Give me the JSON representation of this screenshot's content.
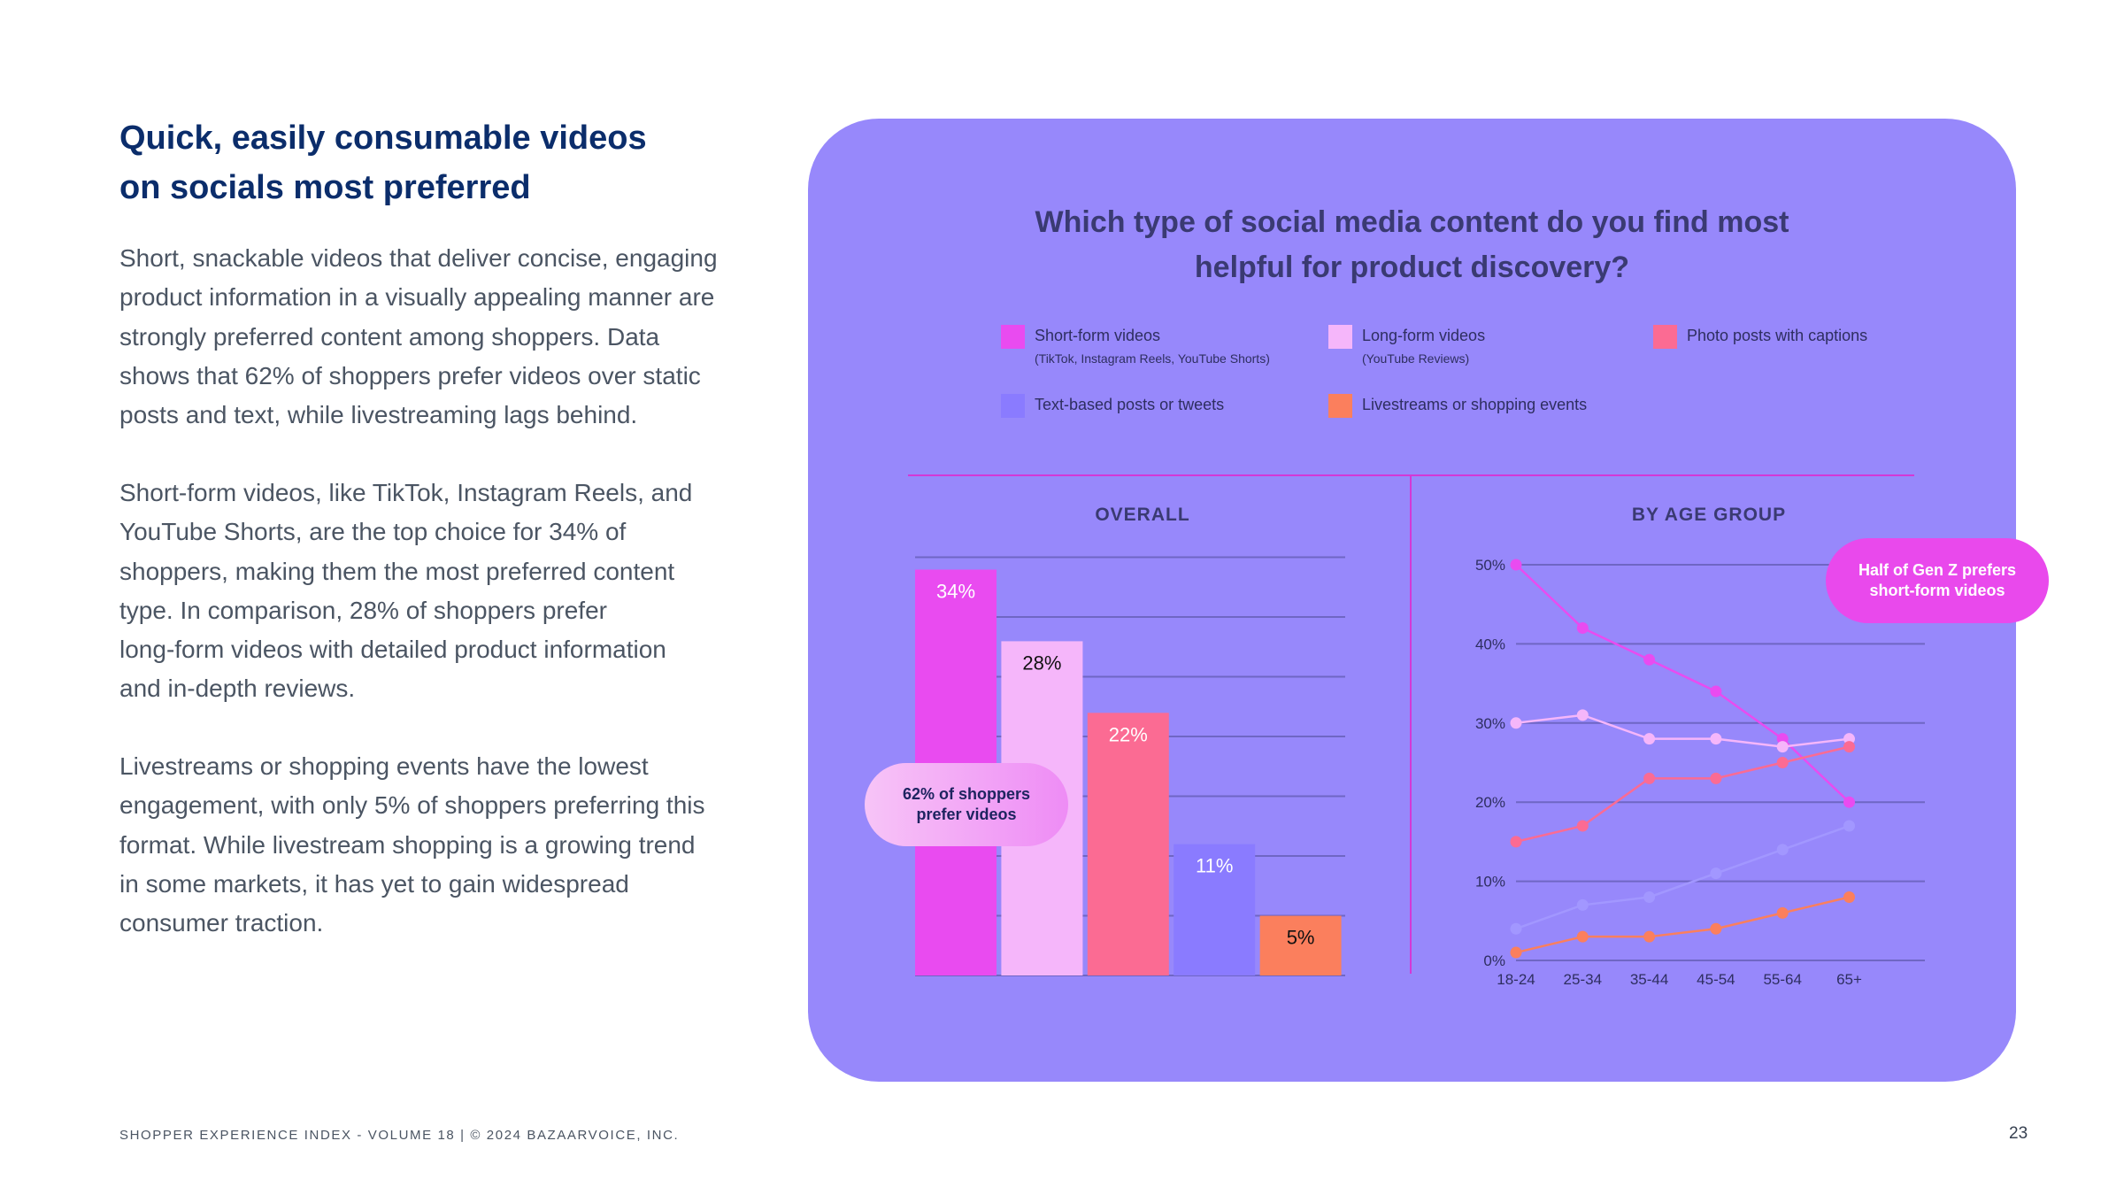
{
  "left": {
    "heading_line1": "Quick, easily consumable videos",
    "heading_line2": "on socials most preferred",
    "p1": [
      "Short, snackable videos that deliver concise, engaging",
      "product information in a visually appealing manner are",
      "strongly preferred content among shoppers. Data",
      "shows that 62% of shoppers prefer videos over static",
      "posts and text, while livestreaming lags behind."
    ],
    "p2": [
      "Short-form videos, like TikTok, Instagram Reels, and",
      "YouTube Shorts, are the top choice for 34% of",
      "shoppers, making them the most preferred content",
      "type. In comparison, 28% of shoppers prefer",
      "long-form videos with detailed product information",
      "and in-depth reviews."
    ],
    "p3": [
      "Livestreams or shopping events have the lowest",
      "engagement, with only 5% of shoppers preferring this",
      "format. While livestream shopping is a growing trend",
      "in some markets, it has yet to gain widespread",
      "consumer traction."
    ]
  },
  "footer": {
    "text": "SHOPPER EXPERIENCE INDEX - VOLUME 18  |  © 2024 BAZAARVOICE, INC.",
    "page": "23"
  },
  "card": {
    "question_line1": "Which type of social media content do you find most",
    "question_line2": "helpful for product discovery?",
    "legend": [
      {
        "label": "Short-form videos",
        "sub": "(TikTok, Instagram Reels, YouTube Shorts)",
        "color": "#e94bf0"
      },
      {
        "label": "Long-form videos",
        "sub": "(YouTube Reviews)",
        "color": "#f5b6fa"
      },
      {
        "label": "Photo posts with captions",
        "sub": "",
        "color": "#fb6b93"
      },
      {
        "label": "Text-based posts or tweets",
        "sub": "",
        "color": "#8a7bff"
      },
      {
        "label": "Livestreams or shopping events",
        "sub": "",
        "color": "#fb7f5d"
      }
    ],
    "overall_title": "OVERALL",
    "age_title": "BY AGE GROUP",
    "callout_overall_line1": "62% of shoppers",
    "callout_overall_line2": "prefer videos",
    "callout_age_line1": "Half of Gen Z prefers",
    "callout_age_line2": "short-form videos"
  },
  "chart_data": [
    {
      "type": "bar",
      "title": "OVERALL",
      "categories": [
        "Short-form videos",
        "Long-form videos",
        "Photo posts with captions",
        "Text-based posts or tweets",
        "Livestreams or shopping events"
      ],
      "values": [
        34,
        28,
        22,
        11,
        5
      ],
      "labels": [
        "34%",
        "28%",
        "22%",
        "11%",
        "5%"
      ],
      "colors": [
        "#e94bf0",
        "#f5b6fa",
        "#fb6b93",
        "#8a7bff",
        "#fb7f5d"
      ],
      "label_colors": [
        "#ffffff",
        "#111111",
        "#ffffff",
        "#ffffff",
        "#111111"
      ],
      "ylim": [
        0,
        35
      ],
      "grid": true
    },
    {
      "type": "line",
      "title": "BY AGE GROUP",
      "x": [
        "18-24",
        "25-34",
        "35-44",
        "45-54",
        "55-64",
        "65+"
      ],
      "yticks": [
        "0%",
        "10%",
        "20%",
        "30%",
        "40%",
        "50%"
      ],
      "ylim": [
        0,
        50
      ],
      "grid": true,
      "series": [
        {
          "name": "Short-form videos",
          "color": "#e94bf0",
          "values": [
            50,
            42,
            38,
            34,
            28,
            20
          ]
        },
        {
          "name": "Long-form videos",
          "color": "#f5b6fa",
          "values": [
            30,
            31,
            28,
            28,
            27,
            28
          ]
        },
        {
          "name": "Photo posts with captions",
          "color": "#fb6b93",
          "values": [
            15,
            17,
            23,
            23,
            25,
            27
          ]
        },
        {
          "name": "Text-based posts or tweets",
          "color": "#a297ff",
          "values": [
            4,
            7,
            8,
            11,
            14,
            17
          ]
        },
        {
          "name": "Livestreams or shopping events",
          "color": "#fb7f5d",
          "values": [
            1,
            3,
            3,
            4,
            6,
            8
          ]
        }
      ]
    }
  ]
}
